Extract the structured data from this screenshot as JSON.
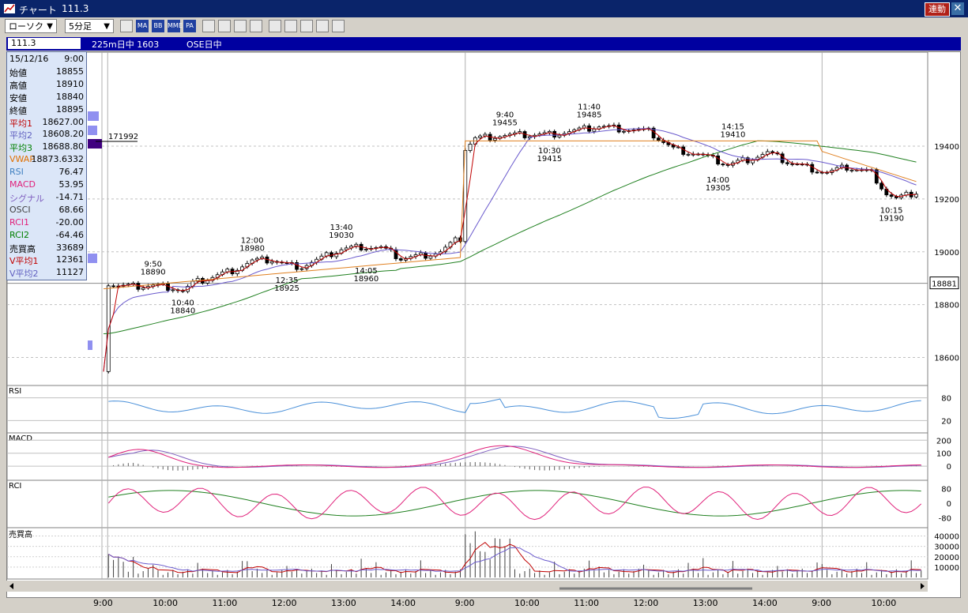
{
  "window": {
    "title": "チャート",
    "symbol": "111.3",
    "link_label": "連動",
    "close_label": "✕"
  },
  "toolbar": {
    "chart_type": "ローソク",
    "interval": "5分足",
    "icons": [
      "chart-settings-icon",
      "ma-icon",
      "bb-icon",
      "mme-icon",
      "pa-icon",
      "line-chart-icon",
      "zoom-chart-icon",
      "magnify-icon",
      "grid-icon",
      "pen-icon",
      "cursor-icon",
      "eraser-icon",
      "search-chart-icon",
      "draw-line-icon"
    ],
    "icon_labels": {
      "ma": "MA",
      "bb": "BB",
      "mme": "MME",
      "pa": "PA"
    }
  },
  "info_bar": {
    "field": "111.3",
    "title1": "225m日中 1603",
    "title2": "OSE日中"
  },
  "info_panel": [
    {
      "label": "15/12/16",
      "value": "9:00",
      "color": "#000000"
    },
    {
      "label": "始値",
      "value": "18855",
      "color": "#000000"
    },
    {
      "label": "高値",
      "value": "18910",
      "color": "#000000"
    },
    {
      "label": "安値",
      "value": "18840",
      "color": "#000000"
    },
    {
      "label": "終値",
      "value": "18895",
      "color": "#000000"
    },
    {
      "label": "平均1",
      "value": "18627.00",
      "color": "#c00000"
    },
    {
      "label": "平均2",
      "value": "18608.20",
      "color": "#6060c0"
    },
    {
      "label": "平均3",
      "value": "18688.80",
      "color": "#008000"
    },
    {
      "label": "VWAP",
      "value": "18873.6332",
      "color": "#e07000"
    },
    {
      "label": "RSI",
      "value": "76.47",
      "color": "#4080c0"
    },
    {
      "label": "MACD",
      "value": "53.95",
      "color": "#e0207a"
    },
    {
      "label": "シグナル",
      "value": "-14.71",
      "color": "#8060c0"
    },
    {
      "label": "OSCI",
      "value": "68.66",
      "color": "#404040"
    },
    {
      "label": "RCI1",
      "value": "-20.00",
      "color": "#e0207a"
    },
    {
      "label": "RCI2",
      "value": "-64.46",
      "color": "#008000"
    },
    {
      "label": "売買高",
      "value": "33689",
      "color": "#000000"
    },
    {
      "label": "V平均1",
      "value": "12361",
      "color": "#c00000"
    },
    {
      "label": "V平均2",
      "value": "11127",
      "color": "#6060c0"
    }
  ],
  "colors": {
    "candle_up": "#ffffff",
    "candle_down": "#000000",
    "ma1": "#c00000",
    "ma2": "#6a5acd",
    "ma3": "#208020",
    "vwap": "#e08020",
    "rsi": "#4a90d9",
    "macd": "#e0207a",
    "signal": "#8060c0",
    "rci1": "#e0207a",
    "rci2": "#208020",
    "vol_ma1": "#c00000",
    "vol_ma2": "#6a5acd"
  },
  "chart_data": {
    "type": "candlestick",
    "title": "225m日中 1603",
    "price_axis": {
      "ticks": [
        "19400",
        "19200",
        "19000",
        "18800",
        "18600"
      ],
      "range": [
        18500,
        19750
      ]
    },
    "current_price_label": "18881",
    "volume_profile_label": "171992",
    "time_axis": {
      "ticks": [
        "9:00",
        "10:00",
        "11:00",
        "12:00",
        "13:00",
        "14:00",
        "9:00",
        "10:00",
        "11:00",
        "12:00",
        "13:00",
        "14:00",
        "9:00",
        "10:00"
      ]
    },
    "price_path": [
      [
        0,
        18560
      ],
      [
        1,
        18880
      ],
      [
        3,
        18870
      ],
      [
        6,
        18868
      ],
      [
        10,
        18872
      ],
      [
        14,
        18865
      ],
      [
        16,
        18850
      ],
      [
        18,
        18880
      ],
      [
        22,
        18905
      ],
      [
        26,
        18930
      ],
      [
        30,
        18965
      ],
      [
        34,
        18970
      ],
      [
        37,
        18950
      ],
      [
        40,
        18945
      ],
      [
        44,
        18975
      ],
      [
        48,
        19010
      ],
      [
        52,
        19020
      ],
      [
        56,
        19015
      ],
      [
        60,
        18975
      ],
      [
        64,
        18985
      ],
      [
        68,
        19000
      ],
      [
        71,
        19040
      ],
      [
        72,
        19050
      ],
      [
        73,
        19390
      ],
      [
        75,
        19430
      ],
      [
        80,
        19440
      ],
      [
        90,
        19445
      ],
      [
        96,
        19460
      ],
      [
        100,
        19475
      ],
      [
        105,
        19465
      ],
      [
        110,
        19455
      ],
      [
        115,
        19390
      ],
      [
        120,
        19370
      ],
      [
        126,
        19330
      ],
      [
        130,
        19350
      ],
      [
        134,
        19375
      ],
      [
        138,
        19340
      ],
      [
        142,
        19320
      ],
      [
        146,
        19300
      ],
      [
        150,
        19320
      ],
      [
        155,
        19300
      ],
      [
        158,
        19220
      ],
      [
        160,
        19200
      ],
      [
        164,
        19225
      ]
    ],
    "annotations": [
      {
        "text": "9:50",
        "text2": "18890",
        "value": 18890,
        "i": 10,
        "pos": "above"
      },
      {
        "text": "10:40",
        "text2": "18840",
        "value": 18840,
        "i": 16,
        "pos": "below"
      },
      {
        "text": "12:00",
        "text2": "18980",
        "value": 18980,
        "i": 30,
        "pos": "above"
      },
      {
        "text": "12:35",
        "text2": "18925",
        "value": 18925,
        "i": 37,
        "pos": "below"
      },
      {
        "text": "13:40",
        "text2": "19030",
        "value": 19030,
        "i": 48,
        "pos": "above"
      },
      {
        "text": "14:05",
        "text2": "18960",
        "value": 18960,
        "i": 53,
        "pos": "below"
      },
      {
        "text": "9:40",
        "text2": "19455",
        "value": 19455,
        "i": 81,
        "pos": "above"
      },
      {
        "text": "10:30",
        "text2": "19415",
        "value": 19415,
        "i": 90,
        "pos": "below"
      },
      {
        "text": "11:40",
        "text2": "19485",
        "value": 19485,
        "i": 98,
        "pos": "above"
      },
      {
        "text": "14:00",
        "text2": "19305",
        "value": 19305,
        "i": 124,
        "pos": "below"
      },
      {
        "text": "14:15",
        "text2": "19410",
        "value": 19410,
        "i": 127,
        "pos": "above"
      },
      {
        "text": "10:15",
        "text2": "19190",
        "value": 19190,
        "i": 159,
        "pos": "below"
      }
    ],
    "panels": [
      {
        "name": "RSI",
        "label": "RSI",
        "ticks": [
          "80",
          "20"
        ]
      },
      {
        "name": "MACD",
        "label": "MACD",
        "ticks": [
          "200",
          "100",
          "0"
        ]
      },
      {
        "name": "RCI",
        "label": "RCI",
        "ticks": [
          "80",
          "0",
          "-80"
        ]
      },
      {
        "name": "Volume",
        "label": "売買高",
        "ticks": [
          "40000",
          "30000",
          "20000",
          "10000"
        ]
      }
    ]
  }
}
